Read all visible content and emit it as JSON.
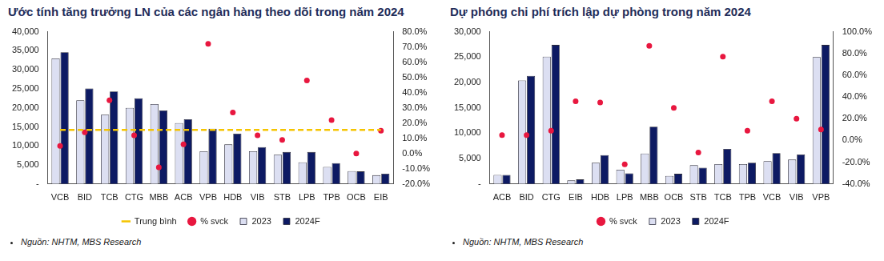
{
  "chart_data": [
    {
      "type": "bar",
      "title": "Ước tính tăng trưởng LN của các ngân hàng theo dõi trong năm 2024",
      "source": "Nguồn: NHTM, MBS Research",
      "categories": [
        "VCB",
        "BID",
        "TCB",
        "CTG",
        "MBB",
        "ACB",
        "VPB",
        "HDB",
        "VIB",
        "STB",
        "LPB",
        "TPB",
        "OCB",
        "EIB"
      ],
      "series": [
        {
          "name": "2023",
          "color": "#dcdff2",
          "values": [
            33000,
            22000,
            18200,
            20000,
            21000,
            16000,
            8600,
            10400,
            8600,
            7700,
            5700,
            4500,
            3400,
            2300
          ]
        },
        {
          "name": "2024F",
          "color": "#0d1a63",
          "values": [
            34600,
            25100,
            24300,
            22500,
            19300,
            17000,
            14500,
            13200,
            9700,
            8400,
            8400,
            5500,
            3300,
            2700
          ]
        },
        {
          "name": "Trung bình",
          "type": "line",
          "line_style": "dashed",
          "color": "#f5c400",
          "axis": "y2",
          "values": [
            15.5,
            15.5,
            15.5,
            15.5,
            15.5,
            15.5,
            15.5,
            15.5,
            15.5,
            15.5,
            15.5,
            15.5,
            15.5,
            15.5
          ]
        },
        {
          "name": "% svck",
          "type": "scatter",
          "marker": "circle",
          "color": "#e8173f",
          "axis": "y2",
          "values": [
            5,
            14,
            35,
            12,
            -9,
            6,
            72,
            27,
            12,
            9,
            48,
            22,
            0,
            15
          ]
        }
      ],
      "ylim": [
        0,
        40000
      ],
      "yticks": [
        {
          "value": 0,
          "label": "-"
        },
        {
          "value": 5000,
          "label": "5,000"
        },
        {
          "value": 10000,
          "label": "10,000"
        },
        {
          "value": 15000,
          "label": "15,000"
        },
        {
          "value": 20000,
          "label": "20,000"
        },
        {
          "value": 25000,
          "label": "25,000"
        },
        {
          "value": 30000,
          "label": "30,000"
        },
        {
          "value": 35000,
          "label": "35,000"
        },
        {
          "value": 40000,
          "label": "40,000"
        }
      ],
      "y2lim": [
        -20,
        80
      ],
      "y2ticks": [
        {
          "value": -20,
          "label": "-20.0%"
        },
        {
          "value": -10,
          "label": "-10.0%"
        },
        {
          "value": 0,
          "label": "0.0%"
        },
        {
          "value": 10,
          "label": "10.0%"
        },
        {
          "value": 20,
          "label": "20.0%"
        },
        {
          "value": 30,
          "label": "30.0%"
        },
        {
          "value": 40,
          "label": "40.0%"
        },
        {
          "value": 50,
          "label": "50.0%"
        },
        {
          "value": 60,
          "label": "60.0%"
        },
        {
          "value": 70,
          "label": "70.0%"
        },
        {
          "value": 80,
          "label": "80.0%"
        }
      ],
      "grid": false,
      "legend": "bottom"
    },
    {
      "type": "bar",
      "title": "Dự phóng chi phí trích lập dự phòng trong năm 2024",
      "source": "Nguồn: NHTM, MBS Research",
      "categories": [
        "ACB",
        "BID",
        "CTG",
        "EIB",
        "HDB",
        "LPB",
        "MBB",
        "OCB",
        "STB",
        "TCB",
        "TPB",
        "VCB",
        "VIB",
        "VPB"
      ],
      "series": [
        {
          "name": "2023",
          "color": "#dcdff2",
          "values": [
            1800,
            20400,
            25100,
            700,
            4200,
            2800,
            6000,
            1600,
            3700,
            3900,
            3900,
            4500,
            4800,
            25000
          ]
        },
        {
          "name": "2024F",
          "color": "#0d1a63",
          "values": [
            1800,
            21300,
            27400,
            900,
            5700,
            2100,
            11300,
            2000,
            3200,
            6900,
            4200,
            6100,
            5800,
            27400
          ]
        },
        {
          "name": "% svck",
          "type": "scatter",
          "marker": "circle",
          "color": "#e8173f",
          "axis": "y2",
          "values": [
            5,
            5,
            9,
            36,
            35,
            -22,
            87,
            30,
            -11,
            77,
            9,
            36,
            20,
            10
          ]
        }
      ],
      "ylim": [
        0,
        30000
      ],
      "yticks": [
        {
          "value": 0,
          "label": "-"
        },
        {
          "value": 5000,
          "label": "5,000"
        },
        {
          "value": 10000,
          "label": "10,000"
        },
        {
          "value": 15000,
          "label": "15,000"
        },
        {
          "value": 20000,
          "label": "20,000"
        },
        {
          "value": 25000,
          "label": "25,000"
        },
        {
          "value": 30000,
          "label": "30,000"
        }
      ],
      "y2lim": [
        -40,
        100
      ],
      "y2ticks": [
        {
          "value": -40,
          "label": "-40.0%"
        },
        {
          "value": -20,
          "label": "-20.0%"
        },
        {
          "value": 0,
          "label": "0.0%"
        },
        {
          "value": 20,
          "label": "20.0%"
        },
        {
          "value": 40,
          "label": "40.0%"
        },
        {
          "value": 60,
          "label": "60.0%"
        },
        {
          "value": 80,
          "label": "80.0%"
        },
        {
          "value": 100,
          "label": "100.0%"
        }
      ],
      "grid": false,
      "legend": "bottom"
    }
  ]
}
